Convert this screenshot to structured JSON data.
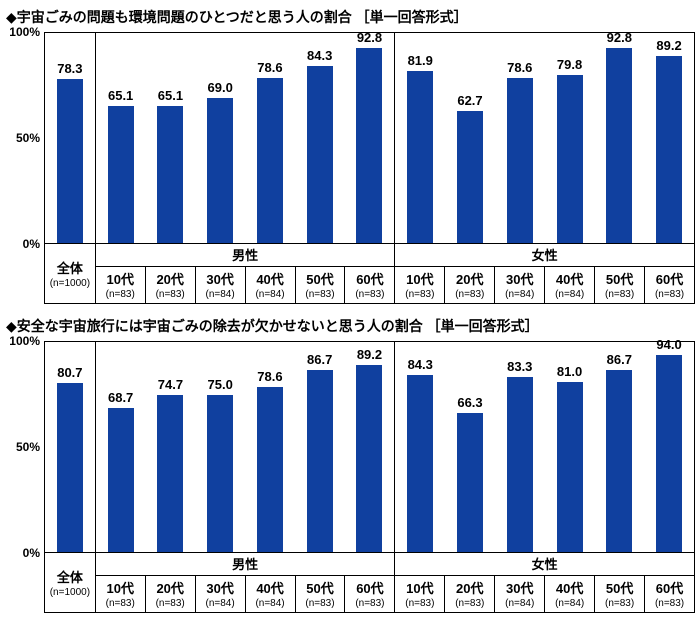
{
  "page": {
    "background": "#ffffff"
  },
  "chart_data": [
    {
      "type": "bar",
      "title": "◆宇宙ごみの問題も環境問題のひとつだと思う人の割合 ［単一回答形式］",
      "ylim": [
        0,
        100
      ],
      "ytick_labels": [
        "100%",
        "50%",
        "0%"
      ],
      "grid": false,
      "bar_color": "#10409f",
      "total": {
        "label": "全体",
        "n": "(n=1000)",
        "value": 78.3
      },
      "groups": [
        {
          "label": "男性",
          "categories": [
            "10代",
            "20代",
            "30代",
            "40代",
            "50代",
            "60代"
          ],
          "ns": [
            "(n=83)",
            "(n=83)",
            "(n=84)",
            "(n=84)",
            "(n=83)",
            "(n=83)"
          ],
          "values": [
            65.1,
            65.1,
            69.0,
            78.6,
            84.3,
            92.8
          ]
        },
        {
          "label": "女性",
          "categories": [
            "10代",
            "20代",
            "30代",
            "40代",
            "50代",
            "60代"
          ],
          "ns": [
            "(n=83)",
            "(n=83)",
            "(n=84)",
            "(n=84)",
            "(n=83)",
            "(n=83)"
          ],
          "values": [
            81.9,
            62.7,
            78.6,
            79.8,
            92.8,
            89.2
          ]
        }
      ]
    },
    {
      "type": "bar",
      "title": "◆安全な宇宙旅行には宇宙ごみの除去が欠かせないと思う人の割合 ［単一回答形式］",
      "ylim": [
        0,
        100
      ],
      "ytick_labels": [
        "100%",
        "50%",
        "0%"
      ],
      "grid": false,
      "bar_color": "#10409f",
      "total": {
        "label": "全体",
        "n": "(n=1000)",
        "value": 80.7
      },
      "groups": [
        {
          "label": "男性",
          "categories": [
            "10代",
            "20代",
            "30代",
            "40代",
            "50代",
            "60代"
          ],
          "ns": [
            "(n=83)",
            "(n=83)",
            "(n=84)",
            "(n=84)",
            "(n=83)",
            "(n=83)"
          ],
          "values": [
            68.7,
            74.7,
            75.0,
            78.6,
            86.7,
            89.2
          ]
        },
        {
          "label": "女性",
          "categories": [
            "10代",
            "20代",
            "30代",
            "40代",
            "50代",
            "60代"
          ],
          "ns": [
            "(n=83)",
            "(n=83)",
            "(n=84)",
            "(n=84)",
            "(n=83)",
            "(n=83)"
          ],
          "values": [
            84.3,
            66.3,
            83.3,
            81.0,
            86.7,
            94.0
          ]
        }
      ]
    }
  ]
}
